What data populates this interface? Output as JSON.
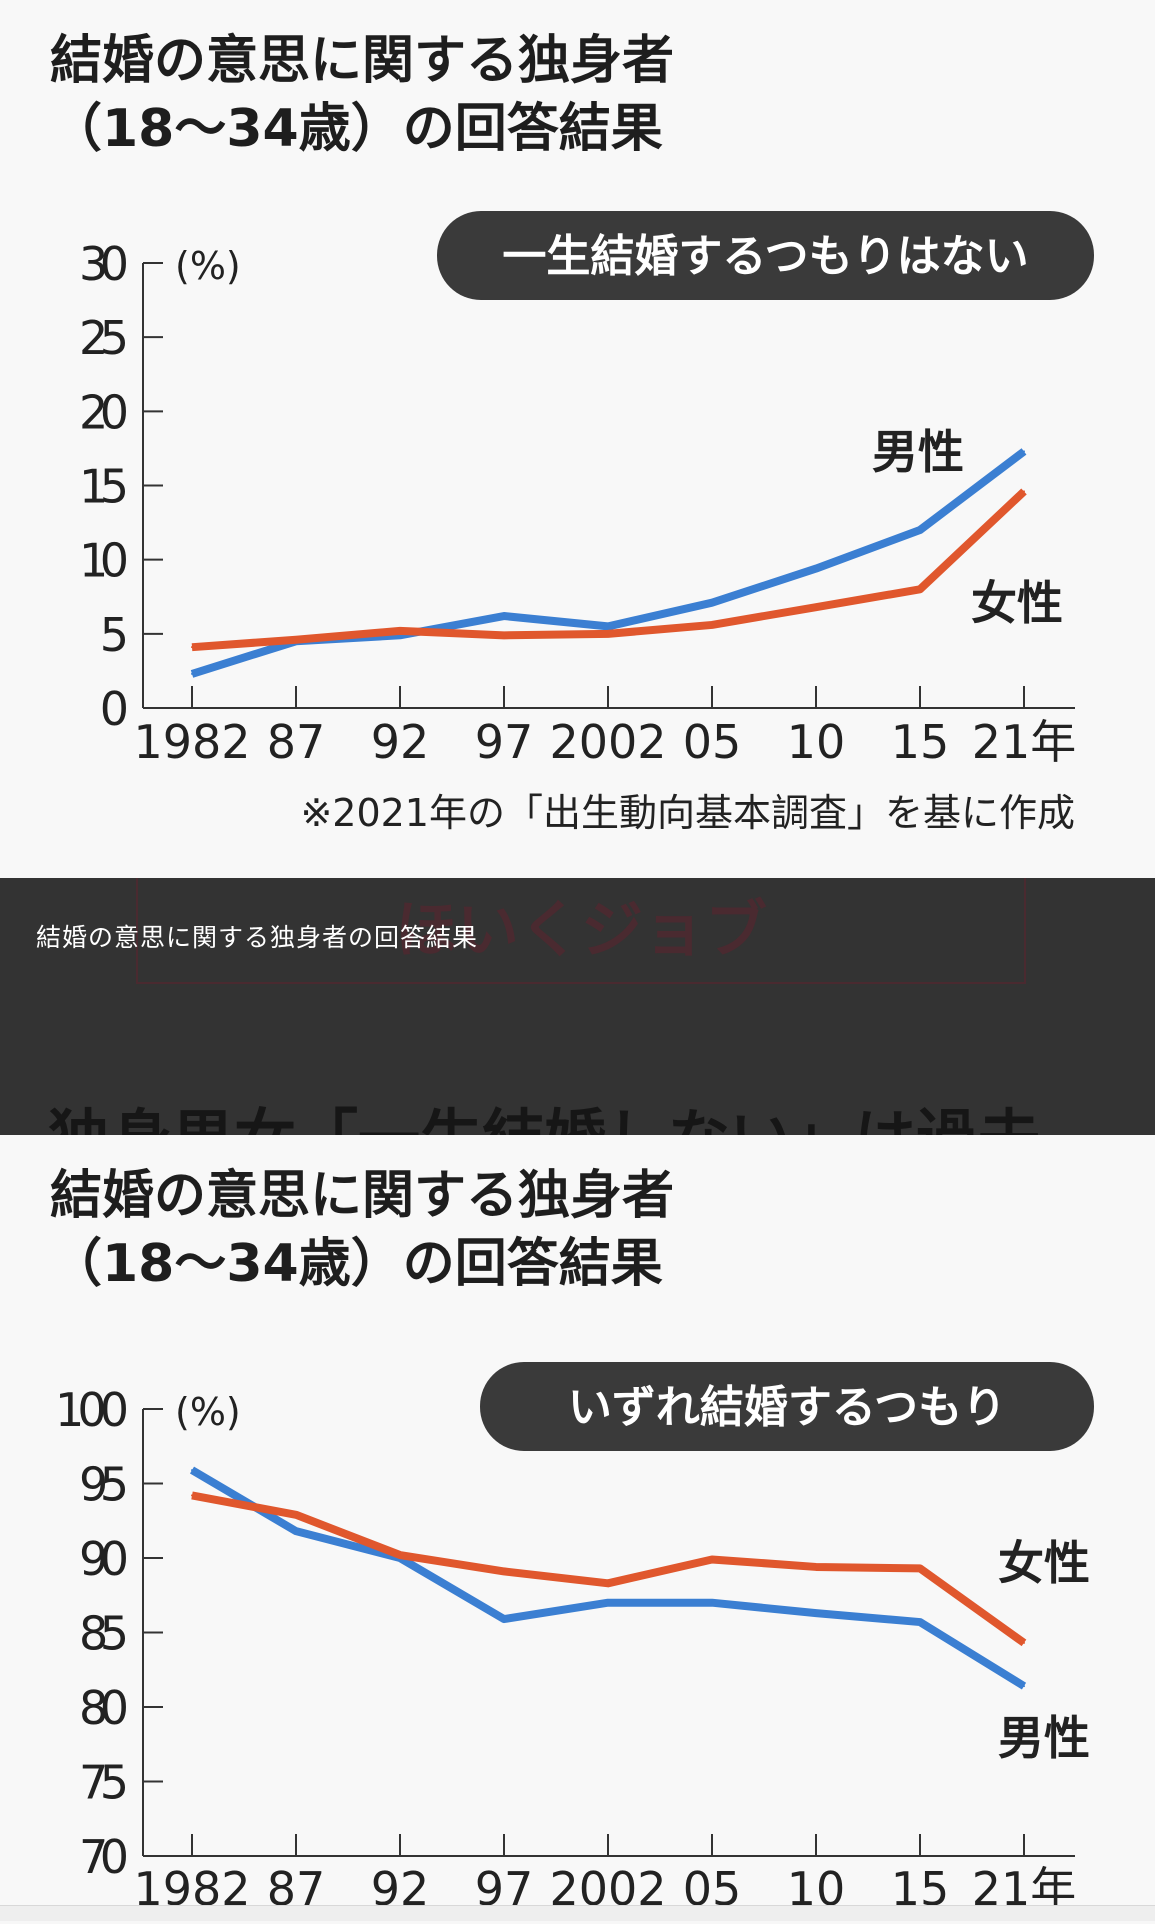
{
  "caption": "結婚の意思に関する独身者の回答結果",
  "watermark": "ほいくジョブ",
  "article_headline": "独身男女「一生結婚しない」は過去",
  "colors": {
    "male": "#3b7fd2",
    "female": "#e0572d",
    "band": "#e9e9e9",
    "badge": "#3a3a3a"
  },
  "chart_data": [
    {
      "type": "line",
      "title": [
        "結婚の意思に関する独身者",
        "（18〜34歳）の回答結果"
      ],
      "subtitle": "一生結婚するつもりはない",
      "ylabel": "(%)",
      "ylim": [
        0,
        30
      ],
      "yticks": [
        0,
        5,
        10,
        15,
        20,
        25,
        30
      ],
      "categories": [
        "1982",
        "87",
        "92",
        "97",
        "2002",
        "05",
        "10",
        "15",
        "21年"
      ],
      "series": [
        {
          "name": "男性",
          "key": "male",
          "values": [
            2.3,
            4.5,
            4.9,
            6.2,
            5.5,
            7.1,
            9.4,
            12.0,
            17.3
          ]
        },
        {
          "name": "女性",
          "key": "female",
          "values": [
            4.1,
            4.6,
            5.2,
            4.9,
            5.0,
            5.6,
            6.8,
            8.0,
            14.6
          ]
        }
      ],
      "note": "※2021年の「出生動向基本調査」を基に作成",
      "grid": "alternating bands"
    },
    {
      "type": "line",
      "title": [
        "結婚の意思に関する独身者",
        "（18〜34歳）の回答結果"
      ],
      "subtitle": "いずれ結婚するつもり",
      "ylabel": "(%)",
      "ylim": [
        70,
        100
      ],
      "yticks": [
        70,
        75,
        80,
        85,
        90,
        95,
        100
      ],
      "categories": [
        "1982",
        "87",
        "92",
        "97",
        "2002",
        "05",
        "10",
        "15",
        "21年"
      ],
      "series": [
        {
          "name": "男性",
          "key": "male",
          "values": [
            95.9,
            91.8,
            90.0,
            85.9,
            87.0,
            87.0,
            86.3,
            85.7,
            81.4
          ]
        },
        {
          "name": "女性",
          "key": "female",
          "values": [
            94.2,
            92.9,
            90.2,
            89.1,
            88.3,
            89.9,
            89.4,
            89.3,
            84.3
          ]
        }
      ],
      "grid": "alternating bands"
    }
  ]
}
